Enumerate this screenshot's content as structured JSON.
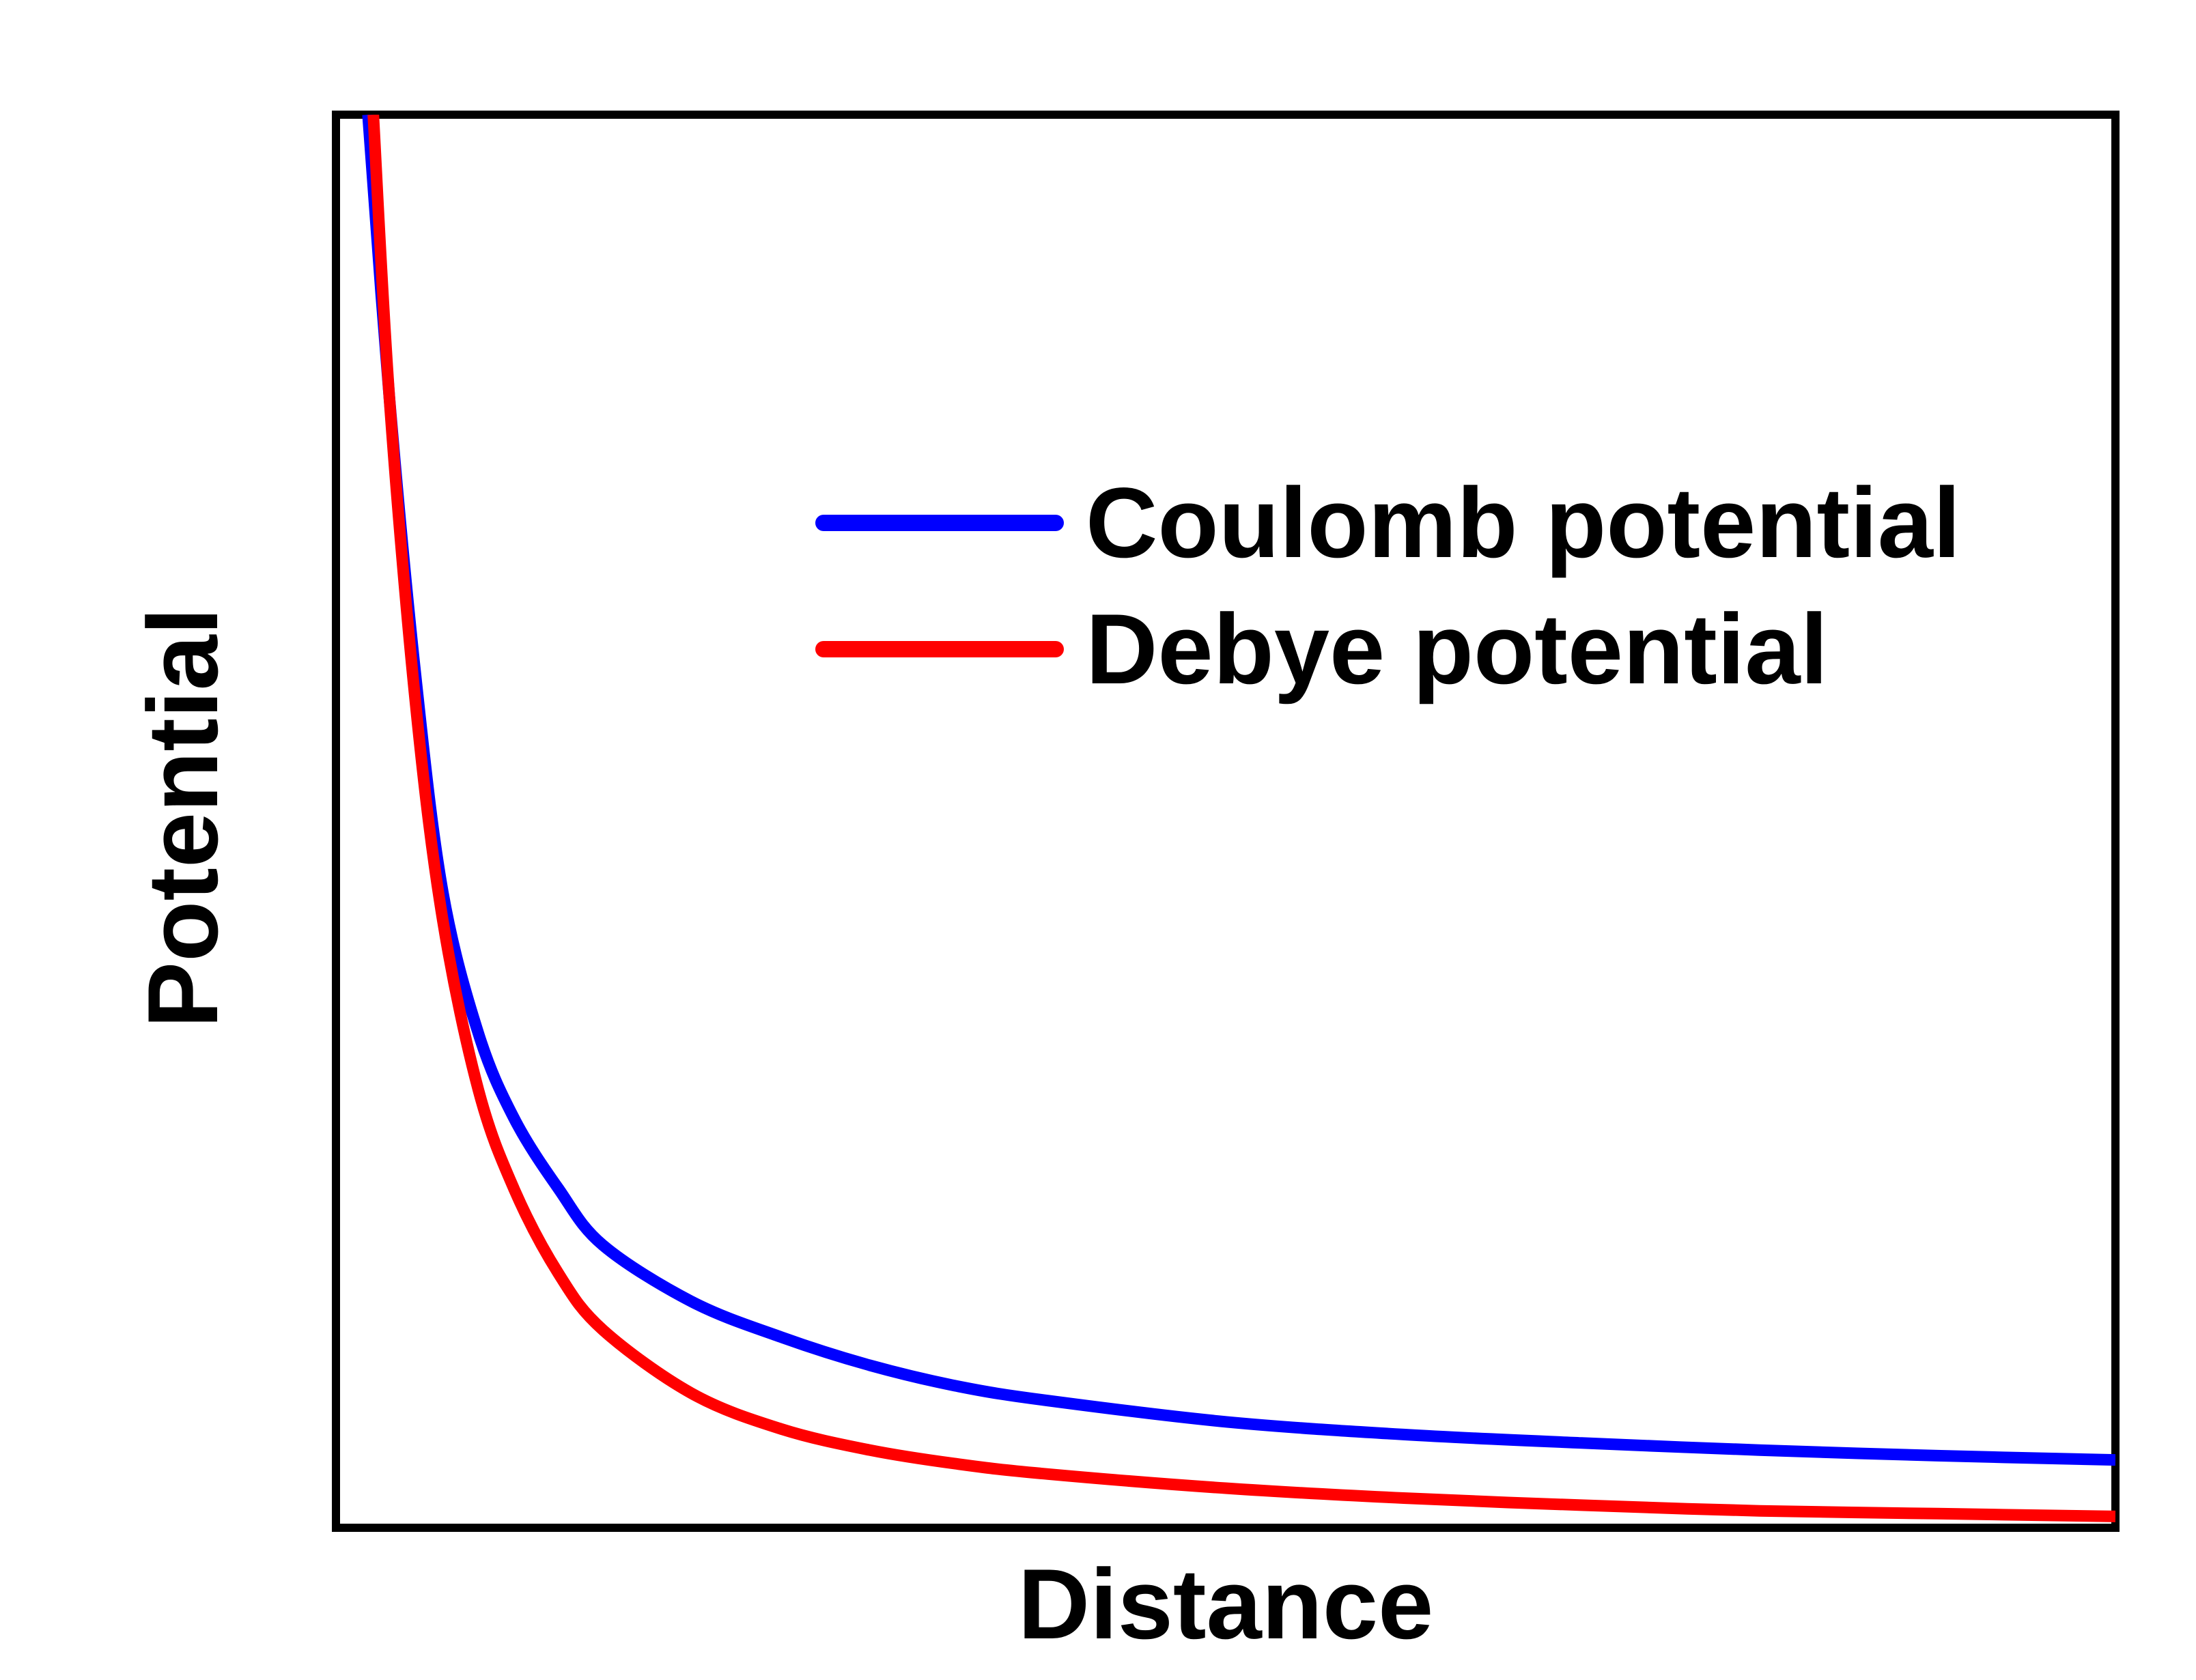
{
  "chart_data": {
    "type": "line",
    "title": "",
    "xlabel": "Distance",
    "ylabel": "Potential",
    "x_ticks_shown": false,
    "y_ticks_shown": false,
    "grid": false,
    "legend_position": "upper-right",
    "xlim": [
      0,
      1
    ],
    "ylim": [
      0,
      1
    ],
    "series": [
      {
        "name": "Coulomb potential",
        "color": "#0000ff",
        "x": [
          0.018,
          0.03,
          0.045,
          0.06,
          0.08,
          0.1,
          0.125,
          0.15,
          0.2,
          0.25,
          0.3,
          0.35,
          0.4,
          0.5,
          0.6,
          0.7,
          0.8,
          0.9,
          1.0
        ],
        "y": [
          1.0,
          0.8,
          0.6,
          0.45,
          0.35,
          0.29,
          0.24,
          0.2,
          0.16,
          0.135,
          0.115,
          0.1,
          0.09,
          0.075,
          0.066,
          0.06,
          0.055,
          0.051,
          0.048
        ]
      },
      {
        "name": "Debye potential",
        "color": "#ff0000",
        "x": [
          0.021,
          0.03,
          0.045,
          0.06,
          0.08,
          0.1,
          0.125,
          0.15,
          0.2,
          0.25,
          0.3,
          0.35,
          0.4,
          0.5,
          0.6,
          0.7,
          0.8,
          0.9,
          1.0
        ],
        "y": [
          1.0,
          0.8,
          0.58,
          0.43,
          0.31,
          0.24,
          0.18,
          0.14,
          0.095,
          0.07,
          0.055,
          0.045,
          0.038,
          0.028,
          0.021,
          0.016,
          0.012,
          0.01,
          0.008
        ]
      }
    ]
  }
}
